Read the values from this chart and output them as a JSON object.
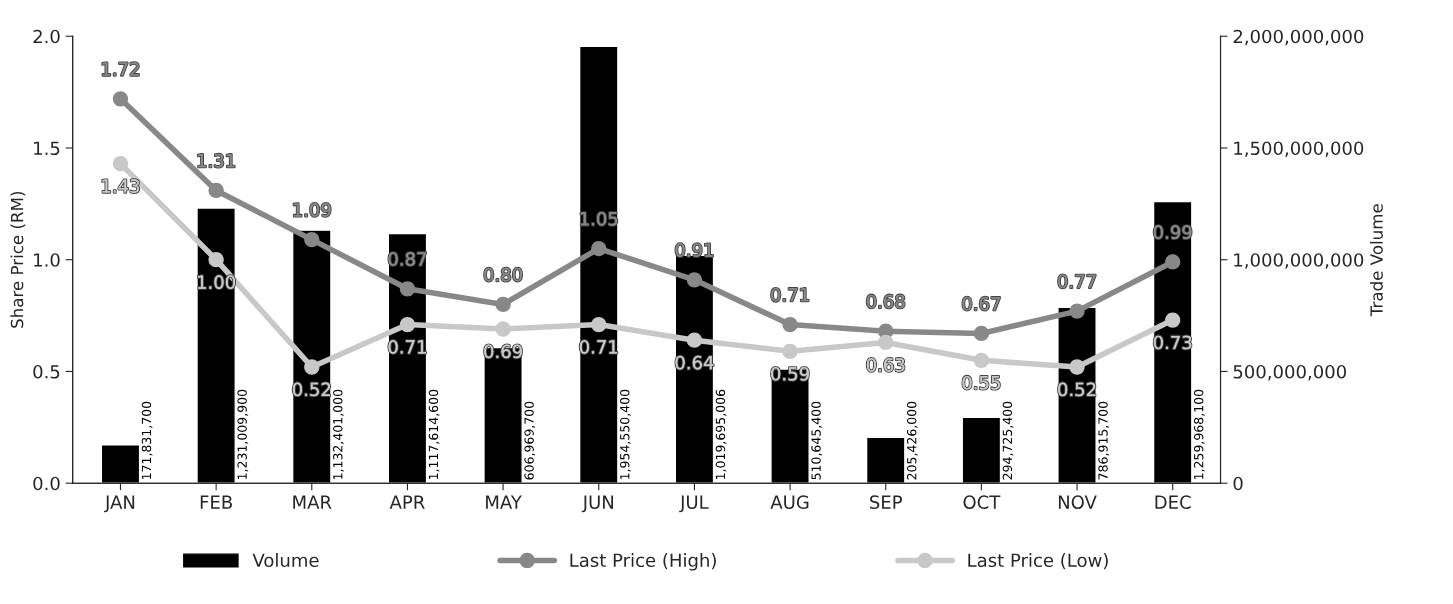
{
  "chart_data": {
    "type": "bar",
    "categories": [
      "JAN",
      "FEB",
      "MAR",
      "APR",
      "MAY",
      "JUN",
      "JUL",
      "AUG",
      "SEP",
      "OCT",
      "NOV",
      "DEC"
    ],
    "ylabel": "Share Price (RM)",
    "y2label": "Trade Volume",
    "ylim": [
      0,
      2
    ],
    "yticks": [
      {
        "value": 0,
        "label": "0.0"
      },
      {
        "value": 0.5,
        "label": "0.5"
      },
      {
        "value": 1,
        "label": "1.0"
      },
      {
        "value": 1.5,
        "label": "1.5"
      },
      {
        "value": 2,
        "label": "2.0"
      }
    ],
    "y2lim": [
      0,
      2000000000
    ],
    "y2ticks": [
      0,
      {
        "value": 500000000,
        "label": "500,000,000"
      },
      {
        "value": 1000000000,
        "label": "1,000,000,000"
      },
      {
        "value": 1500000000,
        "label": "1,500,000,000"
      },
      {
        "value": 2000000000,
        "label": "2,000,000,000"
      }
    ],
    "grid": false,
    "legend": "bottom",
    "series": [
      {
        "name": "Volume",
        "type": "bar",
        "axis": "y2",
        "color": "#000000",
        "values": [
          171831700,
          1231009900,
          1132401000,
          1117614600,
          606969700,
          1954550400,
          1019695006,
          510645400,
          205426000,
          294725400,
          786915700,
          1259968100
        ],
        "value_labels": [
          "171,831,700",
          "1,231,009,900",
          "1,132,401,000",
          "1,117,614,600",
          "606,969,700",
          "1,954,550,400",
          "1,019,695,006",
          "510,645,400",
          "205,426,000",
          "294,725,400",
          "786,915,700",
          "1,259,968,100"
        ]
      },
      {
        "name": "Last Price (High)",
        "type": "line",
        "color": "#888888",
        "marker": "circle",
        "values": [
          1.72,
          1.31,
          1.09,
          0.87,
          0.8,
          1.05,
          0.91,
          0.71,
          0.68,
          0.67,
          0.77,
          0.99
        ],
        "value_labels": [
          "1.72",
          "1.31",
          "1.09",
          "0.87",
          "0.80",
          "1.05",
          "0.91",
          "0.71",
          "0.68",
          "0.67",
          "0.77",
          "0.99"
        ]
      },
      {
        "name": "Last Price (Low)",
        "type": "line",
        "color": "#c8c8c8",
        "marker": "circle",
        "values": [
          1.43,
          1.0,
          0.52,
          0.71,
          0.69,
          0.71,
          0.64,
          0.59,
          0.63,
          0.55,
          0.52,
          0.73
        ],
        "value_labels": [
          "1.43",
          "1.00",
          "0.52",
          "0.71",
          "0.69",
          "0.71",
          "0.64",
          "0.59",
          "0.63",
          "0.55",
          "0.52",
          "0.73"
        ]
      }
    ]
  }
}
